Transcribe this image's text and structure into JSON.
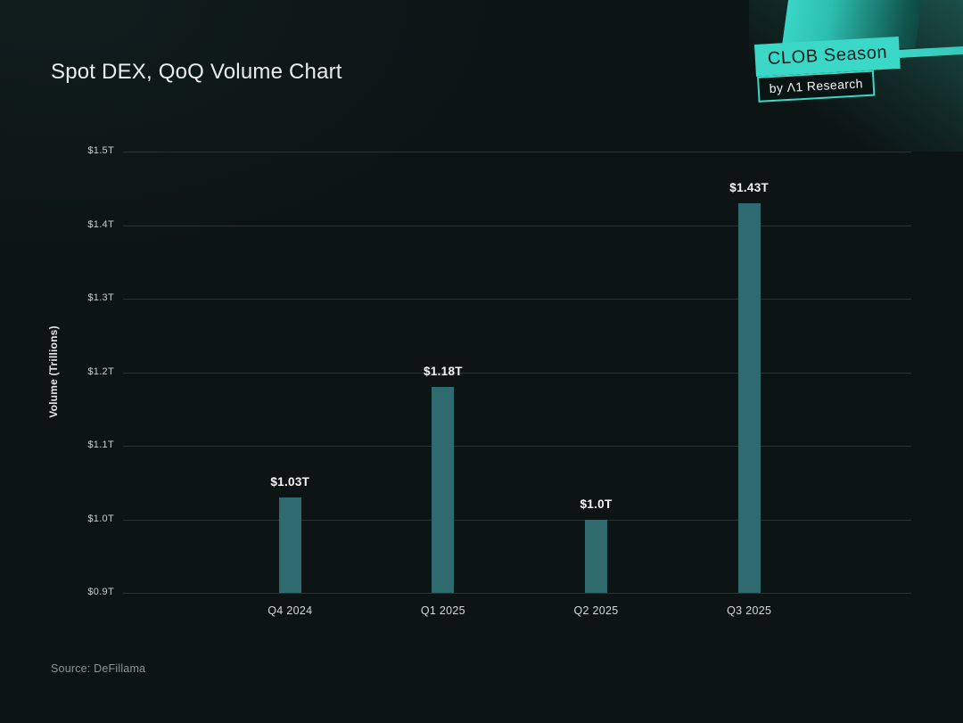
{
  "page": {
    "source": "Source: DeFillama"
  },
  "badge": {
    "primary": "CLOB Season",
    "secondary": "by Λ1 Research"
  },
  "colors": {
    "background": "#0C1514",
    "accent_teal": "#3BD8C8",
    "bar": "#2F6B6E",
    "gridline": "#2A3533",
    "text_primary": "#E9EDEC",
    "text_muted": "#8C9794"
  },
  "chart_data": {
    "type": "bar",
    "title": "Spot DEX, QoQ Volume Chart",
    "categories": [
      "Q4 2024",
      "Q1 2025",
      "Q2 2025",
      "Q3 2025"
    ],
    "values": [
      1.03,
      1.18,
      1.0,
      1.43
    ],
    "value_labels": [
      "$1.03T",
      "$1.18T",
      "$1.0T",
      "$1.43T"
    ],
    "xlabel": "",
    "ylabel": "Volume (Trillions)",
    "ylim": [
      0.9,
      1.5
    ],
    "yticks": [
      0.9,
      1.0,
      1.1,
      1.2,
      1.3,
      1.4,
      1.5
    ],
    "ytick_labels": [
      "$0.9T",
      "$1.0T",
      "$1.1T",
      "$1.2T",
      "$1.3T",
      "$1.4T",
      "$1.5T"
    ],
    "grid": true,
    "legend": false,
    "bar_color": "#2F6B6E"
  }
}
